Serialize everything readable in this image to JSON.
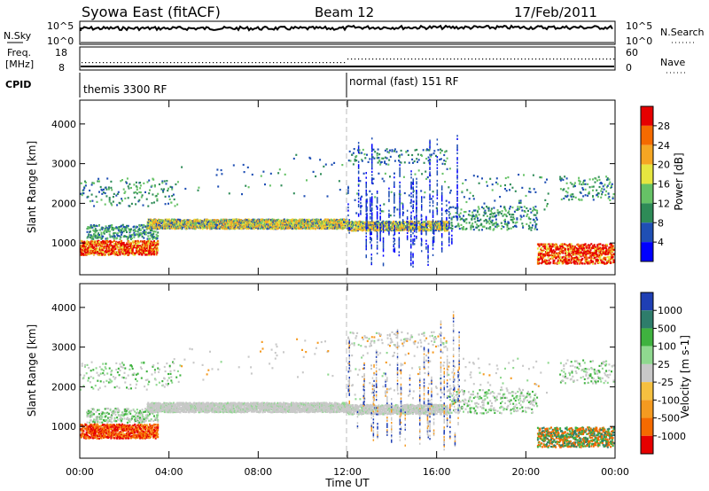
{
  "header": {
    "title": "Syowa East (fitACF)",
    "beam": "Beam 12",
    "date": "17/Feb/2011"
  },
  "noise_panel": {
    "left_label": "N.Sky",
    "left_top": "10^5",
    "left_bottom": "10^0",
    "right_label": "N.Search",
    "right_top": "10^5",
    "right_bottom": "10^0"
  },
  "freq_panel": {
    "left_label_1": "Freq.",
    "left_label_2": "[MHz]",
    "left_top": "18",
    "left_bottom": "8",
    "right_label": "Nave",
    "right_top": "60",
    "right_bottom": "0"
  },
  "cpid_panel": {
    "label": "CPID",
    "mode_1": "themis 3300 RF",
    "mode_2": "normal (fast) 151 RF"
  },
  "chart_data": [
    {
      "type": "heatmap",
      "name": "power",
      "ylabel": "Slant Range [km]",
      "ylim": [
        200,
        4600
      ],
      "xlim": [
        0,
        24
      ],
      "yticks": [
        "1000",
        "2000",
        "3000",
        "4000"
      ],
      "colorbar_label": "Power [dB]",
      "colorbar_ticks": [
        "4",
        "8",
        "12",
        "16",
        "20",
        "24",
        "28"
      ],
      "colorbar_colors": [
        "#0000ff",
        "#1f4fb4",
        "#2e8b57",
        "#66c266",
        "#e6e640",
        "#f5a623",
        "#f56a00",
        "#e60000"
      ]
    },
    {
      "type": "heatmap",
      "name": "velocity",
      "ylabel": "Slant Range [km]",
      "ylim": [
        200,
        4600
      ],
      "xlim": [
        0,
        24
      ],
      "yticks": [
        "1000",
        "2000",
        "3000",
        "4000"
      ],
      "colorbar_label": "Velocity [m s-1]",
      "colorbar_ticks": [
        "1000",
        "500",
        "100",
        "25",
        "-25",
        "-100",
        "-500",
        "-1000"
      ],
      "colorbar_colors": [
        "#1f3fb4",
        "#2e7d6b",
        "#3fb23f",
        "#8fd88f",
        "#c8c8c8",
        "#f5c040",
        "#f59a20",
        "#f56a00",
        "#e60000"
      ],
      "xticks": [
        "00:00",
        "04:00",
        "08:00",
        "12:00",
        "16:00",
        "20:00",
        "00:00"
      ],
      "xlabel": "Time UT"
    }
  ]
}
